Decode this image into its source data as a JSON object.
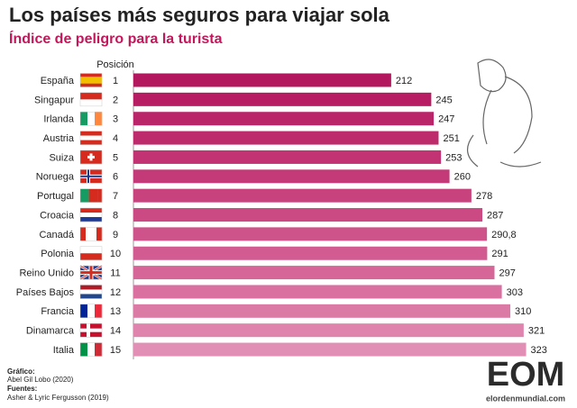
{
  "chart_data": {
    "type": "bar",
    "orientation": "horizontal",
    "title": "Los países más seguros para viajar sola",
    "subtitle": "Índice de peligro para la turista",
    "rank_header": "Posición",
    "categories": [
      "España",
      "Singapur",
      "Irlanda",
      "Austria",
      "Suiza",
      "Noruega",
      "Portugal",
      "Croacia",
      "Canadá",
      "Polonia",
      "Reino Unido",
      "Países Bajos",
      "Francia",
      "Dinamarca",
      "Italia"
    ],
    "ranks": [
      1,
      2,
      3,
      4,
      5,
      6,
      7,
      8,
      9,
      10,
      11,
      12,
      13,
      14,
      15
    ],
    "values": [
      212,
      245,
      247,
      251,
      253,
      260,
      278,
      287,
      290.8,
      291,
      297,
      303,
      310,
      321,
      323
    ],
    "value_labels": [
      "212",
      "245",
      "247",
      "251",
      "253",
      "260",
      "278",
      "287",
      "290,8",
      "291",
      "297",
      "303",
      "310",
      "321",
      "323"
    ],
    "colors": [
      "#b3175e",
      "#b71d63",
      "#ba2468",
      "#be2b6d",
      "#c13372",
      "#c43a78",
      "#c8427e",
      "#cb4a84",
      "#cf538b",
      "#d25c91",
      "#d66698",
      "#d9709f",
      "#dc7aa6",
      "#df84ad",
      "#e28fb5"
    ],
    "xlim": [
      0,
      330
    ],
    "credits": {
      "graphic_label": "Gráfico:",
      "graphic": "Abel Gil Lobo (2020)",
      "sources_label": "Fuentes:",
      "sources": "Asher & Lyric Fergusson (2019)"
    },
    "logo": "EOM",
    "website": "elordenmundial.com"
  }
}
